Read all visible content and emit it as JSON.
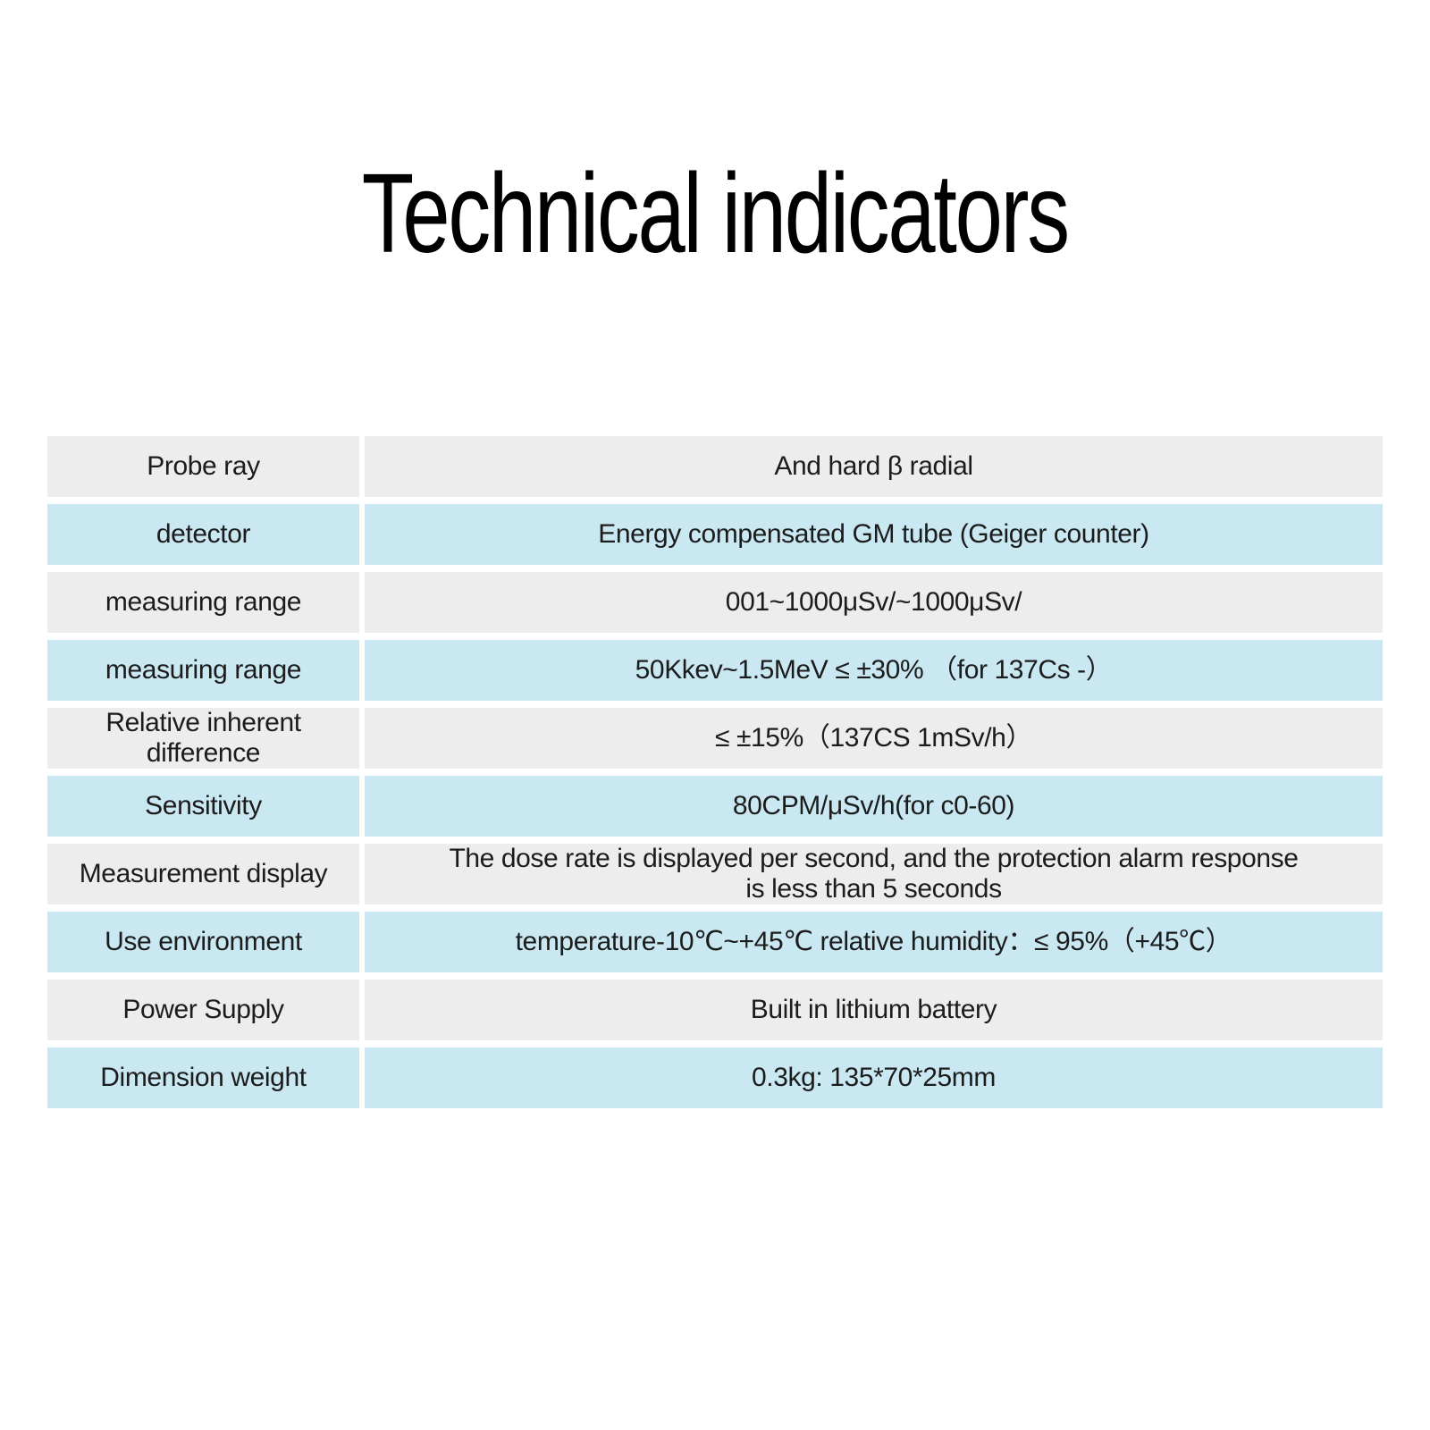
{
  "title": "Technical indicators",
  "table": {
    "rows": [
      {
        "label": "Probe ray",
        "value": "And hard β radial"
      },
      {
        "label": "detector",
        "value": "Energy compensated GM tube (Geiger counter)"
      },
      {
        "label": "measuring range",
        "value": "001~1000μSv/~1000μSv/"
      },
      {
        "label": "measuring range",
        "value": "50Kkev~1.5MeV ≤ ±30% （for 137Cs -）"
      },
      {
        "label": "Relative inherent\ndifference",
        "value": "≤ ±15%（137CS 1mSv/h）"
      },
      {
        "label": "Sensitivity",
        "value": "80CPM/μSv/h(for c0-60)"
      },
      {
        "label": "Measurement display",
        "value": "The dose rate is displayed per second, and the protection alarm response\nis less than 5 seconds"
      },
      {
        "label": "Use environment",
        "value": "temperature-10℃~+45℃ relative humidity：≤ 95%（+45℃）"
      },
      {
        "label": "Power Supply",
        "value": "Built in lithium battery"
      },
      {
        "label": "Dimension weight",
        "value": "0.3kg: 135*70*25mm"
      }
    ]
  },
  "colors": {
    "background": "#ffffff",
    "row_gray": "#ededed",
    "row_blue": "#c9e8f2",
    "text": "#1c1c1c",
    "title_text": "#000000"
  }
}
